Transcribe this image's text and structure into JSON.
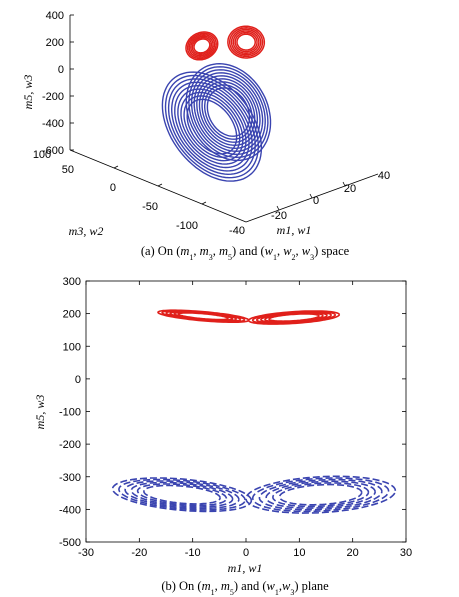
{
  "chart_data": [
    {
      "type": "line",
      "subtype": "3d-attractor",
      "caption": "(a) On (m1, m3, m5) and (w1, w2, w3) space",
      "xlabel": "m1, w1",
      "ylabel": "m3, w2",
      "zlabel": "m5, w3",
      "x_ticks": [
        "-40",
        "-20",
        "0",
        "20",
        "40"
      ],
      "y_ticks": [
        "-100",
        "-50",
        "0",
        "50",
        "100"
      ],
      "z_ticks": [
        "400",
        "200",
        "0",
        "-200",
        "-400",
        "-600"
      ],
      "xlim": [
        -40,
        40
      ],
      "ylim": [
        -100,
        100
      ],
      "zlim": [
        -600,
        400
      ],
      "series": [
        {
          "color": "#e0201b",
          "lobes": [
            {
              "x": -7,
              "y": 12,
              "z": 170
            },
            {
              "x": 7,
              "y": -12,
              "z": 200
            }
          ]
        },
        {
          "color": "#3a44b0",
          "lobes": [
            {
              "x": -8,
              "y": -20,
              "z": -230
            },
            {
              "x": 6,
              "y": 25,
              "z": -520
            }
          ]
        }
      ]
    },
    {
      "type": "line",
      "caption": "(b) On (m1, m5) and (w1,w3) plane",
      "xlabel": "m1, w1",
      "ylabel": "m5, w3",
      "xlim": [
        -30,
        30
      ],
      "ylim": [
        -500,
        300
      ],
      "x_ticks": [
        "-30",
        "-20",
        "-10",
        "0",
        "10",
        "20",
        "30"
      ],
      "y_ticks": [
        "300",
        "200",
        "100",
        "0",
        "-100",
        "-200",
        "-300",
        "-400",
        "-500"
      ],
      "series": [
        {
          "color": "#e0201b",
          "style": "solid",
          "lobes": [
            {
              "cx": -8,
              "cy": 192,
              "rx": 8.5,
              "ry": 14,
              "tilt": -4
            },
            {
              "cx": 9,
              "cy": 188,
              "rx": 8.5,
              "ry": 18,
              "tilt": 3
            }
          ]
        },
        {
          "color": "#3a44b0",
          "style": "dashed",
          "lobes": [
            {
              "cx": -12,
              "cy": -355,
              "rx": 13,
              "ry": 48,
              "tilt": -6
            },
            {
              "cx": 14,
              "cy": -355,
              "rx": 14,
              "ry": 55,
              "tilt": 4
            }
          ]
        }
      ]
    }
  ]
}
